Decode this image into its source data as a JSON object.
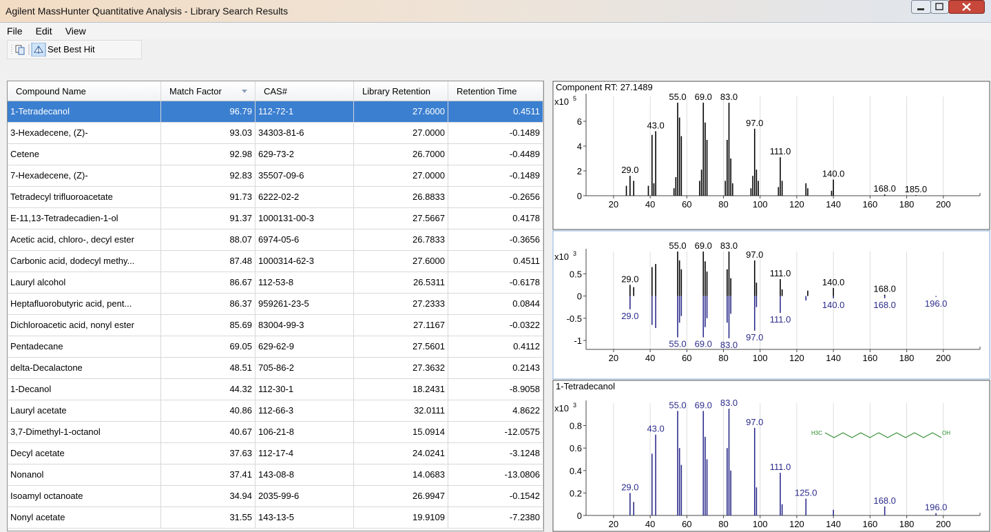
{
  "window": {
    "title": "Agilent MassHunter Quantitative Analysis - Library Search Results"
  },
  "menu": [
    "File",
    "Edit",
    "View"
  ],
  "toolbar": {
    "button": "Set Best Hit"
  },
  "table": {
    "columns": [
      "Compound Name",
      "Match Factor",
      "CAS#",
      "Library Retention",
      "Retention Time"
    ],
    "rows": [
      [
        "1-Tetradecanol",
        "96.79",
        "112-72-1",
        "27.6000",
        "0.4511"
      ],
      [
        "3-Hexadecene, (Z)-",
        "93.03",
        "34303-81-6",
        "27.0000",
        "-0.1489"
      ],
      [
        "Cetene",
        "92.98",
        "629-73-2",
        "26.7000",
        "-0.4489"
      ],
      [
        "7-Hexadecene, (Z)-",
        "92.83",
        "35507-09-6",
        "27.0000",
        "-0.1489"
      ],
      [
        "Tetradecyl trifluoroacetate",
        "91.73",
        "6222-02-2",
        "26.8833",
        "-0.2656"
      ],
      [
        "E-11,13-Tetradecadien-1-ol",
        "91.37",
        "1000131-00-3",
        "27.5667",
        "0.4178"
      ],
      [
        "Acetic acid, chloro-, decyl ester",
        "88.07",
        "6974-05-6",
        "26.7833",
        "-0.3656"
      ],
      [
        "Carbonic acid, dodecyl methy...",
        "87.48",
        "1000314-62-3",
        "27.6000",
        "0.4511"
      ],
      [
        "Lauryl alcohol",
        "86.67",
        "112-53-8",
        "26.5311",
        "-0.6178"
      ],
      [
        "Heptafluorobutyric acid, pent...",
        "86.37",
        "959261-23-5",
        "27.2333",
        "0.0844"
      ],
      [
        "Dichloroacetic acid, nonyl ester",
        "85.69",
        "83004-99-3",
        "27.1167",
        "-0.0322"
      ],
      [
        "Pentadecane",
        "69.05",
        "629-62-9",
        "27.5601",
        "0.4112"
      ],
      [
        "delta-Decalactone",
        "48.51",
        "705-86-2",
        "27.3632",
        "0.2143"
      ],
      [
        "1-Decanol",
        "44.32",
        "112-30-1",
        "18.2431",
        "-8.9058"
      ],
      [
        "Lauryl acetate",
        "40.86",
        "112-66-3",
        "32.0111",
        "4.8622"
      ],
      [
        "3,7-Dimethyl-1-octanol",
        "40.67",
        "106-21-8",
        "15.0914",
        "-12.0575"
      ],
      [
        "Decyl acetate",
        "37.63",
        "112-17-4",
        "24.0241",
        "-3.1248"
      ],
      [
        "Nonanol",
        "37.41",
        "143-08-8",
        "14.0683",
        "-13.0806"
      ],
      [
        "Isoamyl octanoate",
        "34.94",
        "2035-99-6",
        "26.9947",
        "-0.1542"
      ],
      [
        "Nonyl acetate",
        "31.55",
        "143-13-5",
        "19.9109",
        "-7.2380"
      ]
    ],
    "selected_row": 0
  },
  "spectra": [
    {
      "title": "Component RT: 27.1489",
      "scale": "x10",
      "exponent": 5,
      "xlim": [
        5,
        220
      ],
      "xticks": [
        20,
        40,
        60,
        80,
        100,
        120,
        140,
        160,
        180,
        200
      ],
      "ylim": [
        0,
        8
      ],
      "yticks": [
        0,
        2,
        4,
        6
      ],
      "series": [
        {
          "color": "#000000",
          "mz": [
            27,
            29,
            31,
            39,
            41,
            42,
            43,
            53,
            54,
            55,
            56,
            57,
            67,
            68,
            69,
            70,
            71,
            81,
            82,
            83,
            84,
            85,
            95,
            96,
            97,
            98,
            99,
            110,
            111,
            112,
            125,
            126,
            139,
            140,
            168,
            185
          ],
          "intensity": [
            0.8,
            1.6,
            1.2,
            0.8,
            4.9,
            1.0,
            5.2,
            0.6,
            1.5,
            7.5,
            6.3,
            4.8,
            1.2,
            2.1,
            7.5,
            5.9,
            4.5,
            1.2,
            4.5,
            7.5,
            3.0,
            1.0,
            0.6,
            1.6,
            5.4,
            2.1,
            1.2,
            0.7,
            3.1,
            1.2,
            1.0,
            0.6,
            0.4,
            1.3,
            0.1,
            0.05
          ],
          "labels": [
            {
              "mz": 29,
              "label": "29.0"
            },
            {
              "mz": 43,
              "label": "43.0"
            },
            {
              "mz": 55,
              "label": "55.0"
            },
            {
              "mz": 69,
              "label": "69.0"
            },
            {
              "mz": 83,
              "label": "83.0"
            },
            {
              "mz": 97,
              "label": "97.0"
            },
            {
              "mz": 111,
              "label": "111.0"
            },
            {
              "mz": 140,
              "label": "140.0"
            },
            {
              "mz": 168,
              "label": "168.0"
            },
            {
              "mz": 185,
              "label": "185.0"
            }
          ]
        }
      ]
    },
    {
      "scale": "x10",
      "exponent": 3,
      "xlim": [
        5,
        220
      ],
      "xticks": [
        20,
        40,
        60,
        80,
        100,
        120,
        140,
        160,
        180,
        200
      ],
      "ylim": [
        -1.2,
        1.0
      ],
      "yticks": [
        -1,
        -0.5,
        0,
        0.5
      ],
      "series": [
        {
          "color": "#000000",
          "mz": [
            29,
            31,
            41,
            43,
            55,
            56,
            57,
            69,
            70,
            71,
            82,
            83,
            84,
            97,
            98,
            111,
            112,
            126,
            140,
            168
          ],
          "intensity": [
            0.25,
            0.2,
            0.65,
            0.72,
            1.0,
            0.8,
            0.6,
            1.0,
            0.78,
            0.55,
            0.6,
            1.0,
            0.4,
            0.8,
            0.3,
            0.38,
            0.15,
            0.12,
            0.18,
            0.03
          ],
          "labels": [
            {
              "mz": 29,
              "label": "29.0"
            },
            {
              "mz": 55,
              "label": "55.0"
            },
            {
              "mz": 69,
              "label": "69.0"
            },
            {
              "mz": 83,
              "label": "83.0"
            },
            {
              "mz": 97,
              "label": "97.0"
            },
            {
              "mz": 111,
              "label": "111.0"
            },
            {
              "mz": 140,
              "label": "140.0"
            },
            {
              "mz": 168,
              "label": "168.0"
            }
          ]
        },
        {
          "color": "#2b2b8c",
          "mz": [
            29,
            41,
            43,
            55,
            56,
            57,
            69,
            70,
            71,
            82,
            83,
            84,
            97,
            98,
            111,
            125,
            140,
            168,
            196
          ],
          "intensity": [
            -0.3,
            -0.65,
            -0.72,
            -0.93,
            -0.6,
            -0.45,
            -0.93,
            -0.7,
            -0.5,
            -0.6,
            -0.95,
            -0.4,
            -0.78,
            -0.25,
            -0.38,
            -0.1,
            -0.05,
            -0.05,
            -0.02
          ],
          "labels": [
            {
              "mz": 29,
              "label": "29.0"
            },
            {
              "mz": 55,
              "label": "55.0"
            },
            {
              "mz": 69,
              "label": "69.0"
            },
            {
              "mz": 83,
              "label": "83.0"
            },
            {
              "mz": 97,
              "label": "97.0"
            },
            {
              "mz": 111,
              "label": "111.0"
            },
            {
              "mz": 140,
              "label": "140.0"
            },
            {
              "mz": 168,
              "label": "168.0"
            },
            {
              "mz": 196,
              "label": "196.0"
            }
          ]
        }
      ]
    },
    {
      "title": "1-Tetradecanol",
      "scale": "x10",
      "exponent": 3,
      "xlim": [
        5,
        220
      ],
      "xticks": [
        20,
        40,
        60,
        80,
        100,
        120,
        140,
        160,
        180,
        200
      ],
      "ylim": [
        0,
        1.0
      ],
      "yticks": [
        0,
        0.2,
        0.4,
        0.6,
        0.8
      ],
      "structure": {
        "left": "H3C",
        "right": "OH"
      },
      "series": [
        {
          "color": "#2b2b8c",
          "mz": [
            29,
            31,
            41,
            43,
            55,
            56,
            57,
            69,
            70,
            71,
            82,
            83,
            84,
            97,
            98,
            111,
            112,
            125,
            140,
            168,
            196
          ],
          "intensity": [
            0.2,
            0.12,
            0.55,
            0.72,
            0.93,
            0.6,
            0.45,
            0.93,
            0.7,
            0.5,
            0.6,
            0.95,
            0.4,
            0.78,
            0.25,
            0.38,
            0.1,
            0.15,
            0.05,
            0.08,
            0.02
          ],
          "labels": [
            {
              "mz": 29,
              "label": "29.0"
            },
            {
              "mz": 43,
              "label": "43.0"
            },
            {
              "mz": 55,
              "label": "55.0"
            },
            {
              "mz": 69,
              "label": "69.0"
            },
            {
              "mz": 83,
              "label": "83.0"
            },
            {
              "mz": 97,
              "label": "97.0"
            },
            {
              "mz": 111,
              "label": "111.0"
            },
            {
              "mz": 125,
              "label": "125.0"
            },
            {
              "mz": 168,
              "label": "168.0"
            },
            {
              "mz": 196,
              "label": "196.0"
            }
          ]
        }
      ]
    }
  ]
}
